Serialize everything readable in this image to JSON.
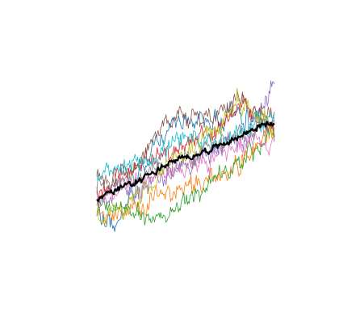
{
  "chart_data": {
    "type": "line",
    "title": "",
    "xlabel": "",
    "ylabel": "",
    "axes_visible": false,
    "grid": false,
    "legend": "none",
    "xlim": [
      0,
      200
    ],
    "ylim": [
      0,
      100
    ],
    "colors": {
      "mean": "#000000",
      "series": [
        "#1f77b4",
        "#ff7f0e",
        "#2ca02c",
        "#d62728",
        "#9467bd",
        "#8c564b",
        "#e377c2",
        "#7f7f7f",
        "#bcbd22",
        "#17becf"
      ]
    },
    "series_anchors": [
      [
        [
          0,
          18
        ],
        [
          20,
          10
        ],
        [
          45,
          35
        ],
        [
          70,
          60
        ],
        [
          100,
          68
        ],
        [
          130,
          70
        ],
        [
          160,
          74
        ],
        [
          185,
          68
        ],
        [
          200,
          66
        ]
      ],
      [
        [
          0,
          20
        ],
        [
          25,
          16
        ],
        [
          60,
          25
        ],
        [
          95,
          32
        ],
        [
          125,
          38
        ],
        [
          150,
          40
        ],
        [
          172,
          52
        ],
        [
          188,
          63
        ],
        [
          200,
          67
        ]
      ],
      [
        [
          0,
          24
        ],
        [
          20,
          20
        ],
        [
          40,
          18
        ],
        [
          70,
          14
        ],
        [
          100,
          24
        ],
        [
          125,
          33
        ],
        [
          150,
          40
        ],
        [
          175,
          52
        ],
        [
          200,
          62
        ]
      ],
      [
        [
          0,
          30
        ],
        [
          20,
          36
        ],
        [
          50,
          45
        ],
        [
          80,
          52
        ],
        [
          110,
          57
        ],
        [
          140,
          62
        ],
        [
          165,
          80
        ],
        [
          185,
          70
        ],
        [
          200,
          62
        ]
      ],
      [
        [
          0,
          22
        ],
        [
          25,
          28
        ],
        [
          55,
          33
        ],
        [
          85,
          40
        ],
        [
          115,
          48
        ],
        [
          145,
          56
        ],
        [
          170,
          62
        ],
        [
          185,
          78
        ],
        [
          200,
          90
        ]
      ],
      [
        [
          0,
          35
        ],
        [
          25,
          38
        ],
        [
          55,
          52
        ],
        [
          80,
          73
        ],
        [
          110,
          70
        ],
        [
          135,
          73
        ],
        [
          155,
          84
        ],
        [
          178,
          76
        ],
        [
          200,
          74
        ]
      ],
      [
        [
          0,
          28
        ],
        [
          30,
          32
        ],
        [
          65,
          38
        ],
        [
          100,
          45
        ],
        [
          130,
          48
        ],
        [
          160,
          55
        ],
        [
          185,
          60
        ],
        [
          200,
          58
        ]
      ],
      [
        [
          0,
          32
        ],
        [
          30,
          34
        ],
        [
          60,
          40
        ],
        [
          95,
          46
        ],
        [
          130,
          52
        ],
        [
          160,
          60
        ],
        [
          185,
          66
        ],
        [
          200,
          70
        ]
      ],
      [
        [
          0,
          16
        ],
        [
          25,
          18
        ],
        [
          55,
          30
        ],
        [
          85,
          48
        ],
        [
          115,
          56
        ],
        [
          140,
          65
        ],
        [
          158,
          84
        ],
        [
          175,
          72
        ],
        [
          200,
          66
        ]
      ],
      [
        [
          0,
          38
        ],
        [
          25,
          40
        ],
        [
          55,
          48
        ],
        [
          85,
          56
        ],
        [
          115,
          58
        ],
        [
          145,
          60
        ],
        [
          170,
          65
        ],
        [
          200,
          72
        ]
      ]
    ],
    "mean_anchors": [
      [
        0,
        26
      ],
      [
        40,
        34
      ],
      [
        80,
        45
      ],
      [
        120,
        52
      ],
      [
        150,
        58
      ],
      [
        170,
        63
      ],
      [
        185,
        67
      ],
      [
        200,
        68
      ]
    ]
  }
}
